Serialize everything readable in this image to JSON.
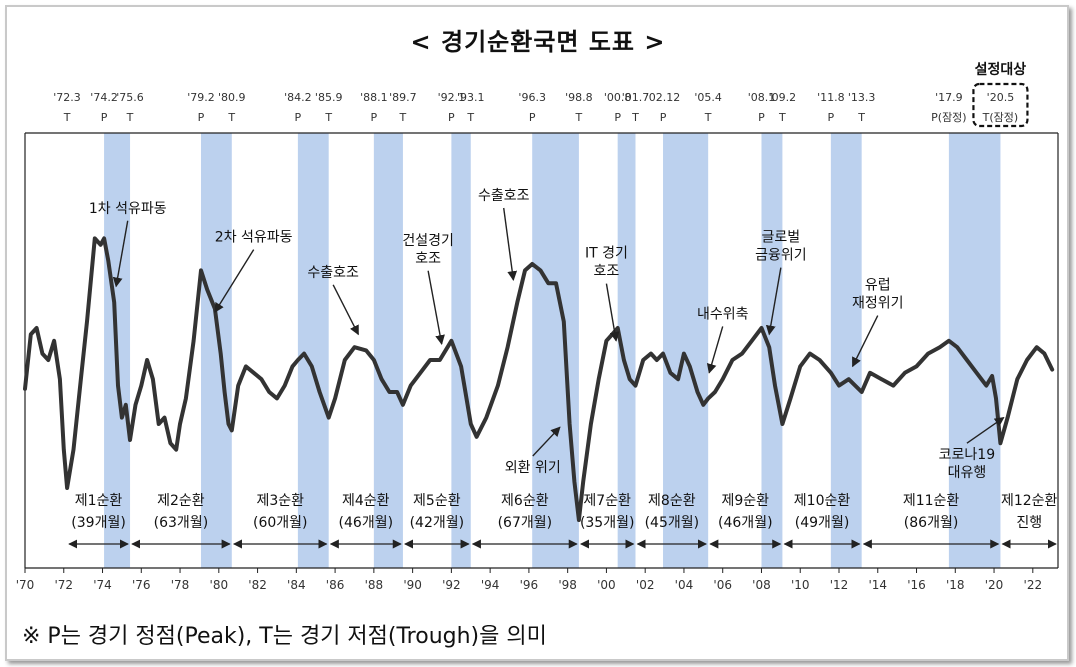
{
  "chart_data": {
    "type": "line",
    "title": "< 경기순환국면 도표 >",
    "footnote": "※  P는  경기  정점(Peak),  T는  경기  저점(Trough)을  의미",
    "x_axis": {
      "min": 1970,
      "max": 2023.3,
      "tick_labels": [
        "'70",
        "'72",
        "'74",
        "'76",
        "'78",
        "'80",
        "'82",
        "'84",
        "'86",
        "'88",
        "'90",
        "'92",
        "'94",
        "'96",
        "'98",
        "'00",
        "'02",
        "'04",
        "'06",
        "'08",
        "'10",
        "'12",
        "'14",
        "'16",
        "'18",
        "'20",
        "'22"
      ]
    },
    "y_axis": {
      "min": 0,
      "max": 100,
      "shown": false
    },
    "turning_points": [
      {
        "date": "'72.3",
        "type": "T",
        "x": 1972.17
      },
      {
        "date": "'74.2",
        "type": "P",
        "x": 1974.08
      },
      {
        "date": "'75.6",
        "type": "T",
        "x": 1975.42
      },
      {
        "date": "'79.2",
        "type": "P",
        "x": 1979.08
      },
      {
        "date": "'80.9",
        "type": "T",
        "x": 1980.67
      },
      {
        "date": "'84.2",
        "type": "P",
        "x": 1984.08
      },
      {
        "date": "'85.9",
        "type": "T",
        "x": 1985.67
      },
      {
        "date": "'88.1",
        "type": "P",
        "x": 1988.0
      },
      {
        "date": "'89.7",
        "type": "T",
        "x": 1989.5
      },
      {
        "date": "'92.1",
        "type": "P",
        "x": 1992.0
      },
      {
        "date": "'93.1",
        "type": "T",
        "x": 1993.0
      },
      {
        "date": "'96.3",
        "type": "P",
        "x": 1996.17
      },
      {
        "date": "'98.8",
        "type": "T",
        "x": 1998.58
      },
      {
        "date": "'00.8",
        "type": "P",
        "x": 2000.58
      },
      {
        "date": "'01.7",
        "type": "T",
        "x": 2001.5
      },
      {
        "date": "'02.12",
        "type": "P",
        "x": 2002.92
      },
      {
        "date": "'05.4",
        "type": "T",
        "x": 2005.25
      },
      {
        "date": "'08.1",
        "type": "P",
        "x": 2008.0
      },
      {
        "date": "'09.2",
        "type": "T",
        "x": 2009.08
      },
      {
        "date": "'11.8",
        "type": "P",
        "x": 2011.58
      },
      {
        "date": "'13.3",
        "type": "T",
        "x": 2013.17
      },
      {
        "date": "'17.9",
        "type": "P(잠정)",
        "x": 2017.67
      },
      {
        "date": "'20.5",
        "type": "T(잠정)",
        "x": 2020.33
      }
    ],
    "highlight_label": "설정대상",
    "shaded_periods": [
      [
        1974.08,
        1975.42
      ],
      [
        1979.08,
        1980.67
      ],
      [
        1984.08,
        1985.67
      ],
      [
        1988.0,
        1989.5
      ],
      [
        1992.0,
        1993.0
      ],
      [
        1996.17,
        1998.58
      ],
      [
        2000.58,
        2001.5
      ],
      [
        2002.92,
        2005.25
      ],
      [
        2008.0,
        2009.08
      ],
      [
        2011.58,
        2013.17
      ],
      [
        2017.67,
        2020.33
      ]
    ],
    "cycles": [
      {
        "name": "제1순환",
        "months": "(39개월)",
        "start": 1972.17,
        "end": 1975.42
      },
      {
        "name": "제2순환",
        "months": "(63개월)",
        "start": 1975.42,
        "end": 1980.67
      },
      {
        "name": "제3순환",
        "months": "(60개월)",
        "start": 1980.67,
        "end": 1985.67
      },
      {
        "name": "제4순환",
        "months": "(46개월)",
        "start": 1985.67,
        "end": 1989.5
      },
      {
        "name": "제5순환",
        "months": "(42개월)",
        "start": 1989.5,
        "end": 1993.0
      },
      {
        "name": "제6순환",
        "months": "(67개월)",
        "start": 1993.0,
        "end": 1998.58
      },
      {
        "name": "제7순환",
        "months": "(35개월)",
        "start": 1998.58,
        "end": 2001.5
      },
      {
        "name": "제8순환",
        "months": "(45개월)",
        "start": 2001.5,
        "end": 2005.25
      },
      {
        "name": "제9순환",
        "months": "(46개월)",
        "start": 2005.25,
        "end": 2009.08
      },
      {
        "name": "제10순환",
        "months": "(49개월)",
        "start": 2009.08,
        "end": 2013.17
      },
      {
        "name": "제11순환",
        "months": "(86개월)",
        "start": 2013.17,
        "end": 2020.33
      },
      {
        "name": "제12순환",
        "months": "진행",
        "start": 2020.33,
        "end": 2023.3
      }
    ],
    "annotations": [
      {
        "lines": [
          "1차 석유파동"
        ],
        "label_x": 1975.3,
        "label_y": 96,
        "tip_x": 1974.7,
        "tip_y": 73
      },
      {
        "lines": [
          "2차 석유파동"
        ],
        "label_x": 1981.8,
        "label_y": 87,
        "tip_x": 1979.8,
        "tip_y": 65
      },
      {
        "lines": [
          "수출호조"
        ],
        "label_x": 1985.9,
        "label_y": 76,
        "tip_x": 1987.2,
        "tip_y": 58
      },
      {
        "lines": [
          "건설경기",
          "호조"
        ],
        "label_x": 1990.8,
        "label_y": 86,
        "tip_x": 1991.5,
        "tip_y": 55
      },
      {
        "lines": [
          "수출호조"
        ],
        "label_x": 1994.7,
        "label_y": 100,
        "tip_x": 1995.2,
        "tip_y": 75
      },
      {
        "lines": [
          "외환 위기"
        ],
        "label_x": 1996.2,
        "label_y": 15,
        "tip_x": 1997.6,
        "tip_y": 29
      },
      {
        "lines": [
          "IT 경기",
          "호조"
        ],
        "label_x": 2000.0,
        "label_y": 82,
        "tip_x": 2000.5,
        "tip_y": 56
      },
      {
        "lines": [
          "내수위축"
        ],
        "label_x": 2006.0,
        "label_y": 63,
        "tip_x": 2005.3,
        "tip_y": 46
      },
      {
        "lines": [
          "글로벌",
          "금융위기"
        ],
        "label_x": 2009.0,
        "label_y": 87,
        "tip_x": 2008.4,
        "tip_y": 58
      },
      {
        "lines": [
          "유럽",
          "재정위기"
        ],
        "label_x": 2014.0,
        "label_y": 72,
        "tip_x": 2012.7,
        "tip_y": 48
      },
      {
        "lines": [
          "코로나19",
          "대유행"
        ],
        "label_x": 2018.6,
        "label_y": 19,
        "tip_x": 2020.5,
        "tip_y": 32
      }
    ],
    "series": [
      {
        "values": [
          [
            1970.0,
            41
          ],
          [
            1970.3,
            58
          ],
          [
            1970.6,
            60
          ],
          [
            1970.9,
            52
          ],
          [
            1971.2,
            50
          ],
          [
            1971.5,
            56
          ],
          [
            1971.8,
            44
          ],
          [
            1972.0,
            22
          ],
          [
            1972.17,
            10
          ],
          [
            1972.5,
            22
          ],
          [
            1972.9,
            45
          ],
          [
            1973.2,
            62
          ],
          [
            1973.6,
            88
          ],
          [
            1973.9,
            86
          ],
          [
            1974.08,
            88
          ],
          [
            1974.3,
            81
          ],
          [
            1974.6,
            68
          ],
          [
            1974.8,
            42
          ],
          [
            1975.0,
            32
          ],
          [
            1975.2,
            36
          ],
          [
            1975.42,
            25
          ],
          [
            1975.7,
            36
          ],
          [
            1976.0,
            42
          ],
          [
            1976.3,
            50
          ],
          [
            1976.6,
            44
          ],
          [
            1976.9,
            30
          ],
          [
            1977.2,
            32
          ],
          [
            1977.5,
            24
          ],
          [
            1977.8,
            22
          ],
          [
            1978.0,
            30
          ],
          [
            1978.3,
            38
          ],
          [
            1978.7,
            56
          ],
          [
            1979.08,
            78
          ],
          [
            1979.4,
            72
          ],
          [
            1979.8,
            66
          ],
          [
            1980.1,
            52
          ],
          [
            1980.3,
            40
          ],
          [
            1980.5,
            30
          ],
          [
            1980.67,
            28
          ],
          [
            1981.0,
            42
          ],
          [
            1981.4,
            48
          ],
          [
            1981.8,
            46
          ],
          [
            1982.2,
            44
          ],
          [
            1982.6,
            40
          ],
          [
            1983.0,
            38
          ],
          [
            1983.4,
            42
          ],
          [
            1983.8,
            48
          ],
          [
            1984.08,
            50
          ],
          [
            1984.4,
            52
          ],
          [
            1984.8,
            48
          ],
          [
            1985.2,
            40
          ],
          [
            1985.67,
            32
          ],
          [
            1986.0,
            38
          ],
          [
            1986.5,
            50
          ],
          [
            1987.0,
            54
          ],
          [
            1987.6,
            53
          ],
          [
            1988.0,
            50
          ],
          [
            1988.4,
            44
          ],
          [
            1988.8,
            40
          ],
          [
            1989.2,
            40
          ],
          [
            1989.5,
            36
          ],
          [
            1989.9,
            42
          ],
          [
            1990.4,
            46
          ],
          [
            1990.9,
            50
          ],
          [
            1991.4,
            50
          ],
          [
            1992.0,
            56
          ],
          [
            1992.5,
            48
          ],
          [
            1993.0,
            30
          ],
          [
            1993.3,
            26
          ],
          [
            1993.8,
            32
          ],
          [
            1994.4,
            42
          ],
          [
            1994.9,
            54
          ],
          [
            1995.4,
            68
          ],
          [
            1995.8,
            78
          ],
          [
            1996.17,
            80
          ],
          [
            1996.6,
            78
          ],
          [
            1997.0,
            74
          ],
          [
            1997.4,
            74
          ],
          [
            1997.8,
            62
          ],
          [
            1998.1,
            30
          ],
          [
            1998.35,
            12
          ],
          [
            1998.58,
            0
          ],
          [
            1998.8,
            12
          ],
          [
            1999.2,
            30
          ],
          [
            1999.6,
            44
          ],
          [
            2000.0,
            56
          ],
          [
            2000.3,
            58
          ],
          [
            2000.58,
            60
          ],
          [
            2000.9,
            50
          ],
          [
            2001.2,
            44
          ],
          [
            2001.5,
            42
          ],
          [
            2001.9,
            50
          ],
          [
            2002.3,
            52
          ],
          [
            2002.6,
            50
          ],
          [
            2002.92,
            52
          ],
          [
            2003.3,
            46
          ],
          [
            2003.7,
            44
          ],
          [
            2004.0,
            52
          ],
          [
            2004.3,
            48
          ],
          [
            2004.7,
            40
          ],
          [
            2005.0,
            36
          ],
          [
            2005.25,
            38
          ],
          [
            2005.6,
            40
          ],
          [
            2006.0,
            44
          ],
          [
            2006.5,
            50
          ],
          [
            2007.0,
            52
          ],
          [
            2007.5,
            56
          ],
          [
            2008.0,
            60
          ],
          [
            2008.4,
            54
          ],
          [
            2008.7,
            42
          ],
          [
            2009.08,
            30
          ],
          [
            2009.5,
            38
          ],
          [
            2010.0,
            48
          ],
          [
            2010.5,
            52
          ],
          [
            2011.0,
            50
          ],
          [
            2011.58,
            46
          ],
          [
            2012.0,
            42
          ],
          [
            2012.5,
            44
          ],
          [
            2013.17,
            40
          ],
          [
            2013.6,
            46
          ],
          [
            2014.2,
            44
          ],
          [
            2014.8,
            42
          ],
          [
            2015.4,
            46
          ],
          [
            2016.0,
            48
          ],
          [
            2016.6,
            52
          ],
          [
            2017.2,
            54
          ],
          [
            2017.67,
            56
          ],
          [
            2018.1,
            54
          ],
          [
            2018.6,
            50
          ],
          [
            2019.1,
            46
          ],
          [
            2019.6,
            42
          ],
          [
            2019.9,
            45
          ],
          [
            2020.1,
            38
          ],
          [
            2020.33,
            24
          ],
          [
            2020.7,
            32
          ],
          [
            2021.2,
            44
          ],
          [
            2021.7,
            50
          ],
          [
            2022.2,
            54
          ],
          [
            2022.6,
            52
          ],
          [
            2023.0,
            47
          ]
        ]
      }
    ]
  }
}
